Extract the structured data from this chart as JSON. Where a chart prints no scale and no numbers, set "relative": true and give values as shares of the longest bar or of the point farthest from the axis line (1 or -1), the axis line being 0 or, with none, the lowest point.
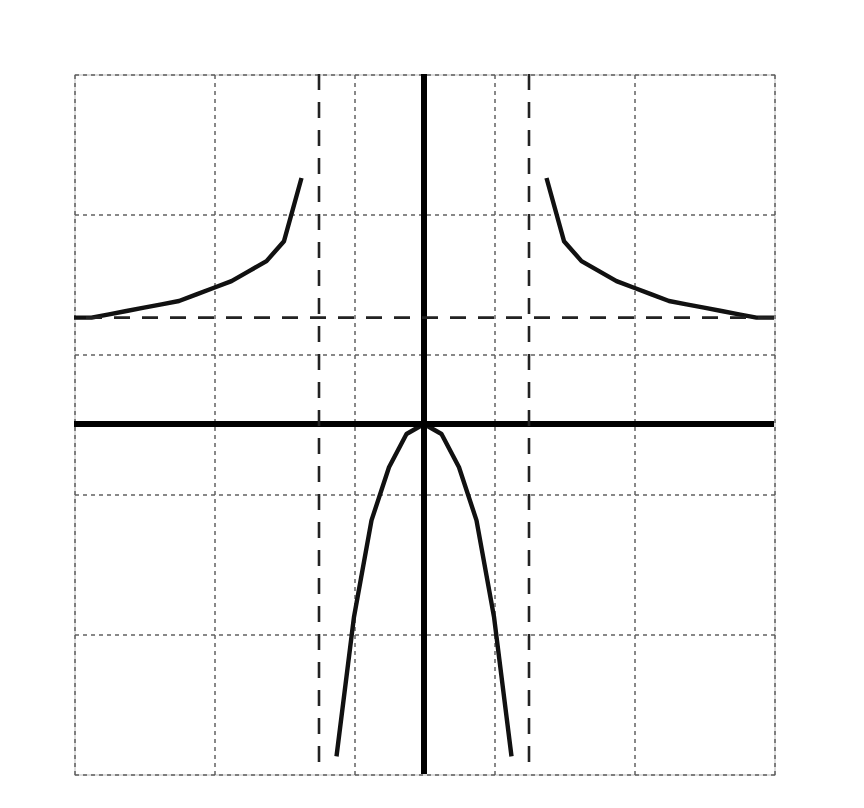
{
  "chart_data": {
    "type": "line",
    "relative": true,
    "categories": [
      null,
      null,
      null,
      null,
      null,
      null,
      null,
      null,
      null,
      null,
      null,
      null,
      null,
      null,
      null,
      null,
      null,
      null,
      null,
      null,
      null,
      null,
      null,
      null,
      null,
      null,
      null,
      null,
      null,
      null,
      null,
      null,
      null,
      null,
      null,
      null,
      null,
      null,
      null,
      null,
      null
    ],
    "series": [
      {
        "color": "#111111",
        "values": [
          0.32,
          0.32,
          0.33,
          0.34,
          0.35,
          0.36,
          0.37,
          0.39,
          0.41,
          0.43,
          0.46,
          0.49,
          0.55,
          0.74,
          null,
          null,
          null,
          null,
          null,
          null,
          null,
          null,
          null,
          null,
          null,
          null,
          null,
          null,
          null,
          null,
          null,
          null,
          null,
          null,
          null,
          null,
          null,
          null,
          null,
          null,
          null
        ]
      },
      {
        "color": "#111111",
        "values": [
          null,
          null,
          null,
          null,
          null,
          null,
          null,
          null,
          null,
          null,
          null,
          null,
          null,
          null,
          null,
          -1,
          -0.58,
          -0.29,
          -0.13,
          -0.03,
          0,
          -0.03,
          -0.13,
          -0.29,
          -0.58,
          -1,
          null,
          null,
          null,
          null,
          null,
          null,
          null,
          null,
          null,
          null,
          null,
          null,
          null,
          null,
          null
        ]
      },
      {
        "color": "#111111",
        "values": [
          null,
          null,
          null,
          null,
          null,
          null,
          null,
          null,
          null,
          null,
          null,
          null,
          null,
          null,
          null,
          null,
          null,
          null,
          null,
          null,
          null,
          null,
          null,
          null,
          null,
          null,
          null,
          0.74,
          0.55,
          0.49,
          0.46,
          0.43,
          0.41,
          0.39,
          0.37,
          0.36,
          0.35,
          0.34,
          0.33,
          0.32,
          0.32
        ]
      }
    ],
    "ref_lines": [
      {
        "axis": "y",
        "value": 0.32,
        "line_style": "dashed"
      }
    ],
    "grid": true,
    "line_style": "solid",
    "marker": "none"
  }
}
